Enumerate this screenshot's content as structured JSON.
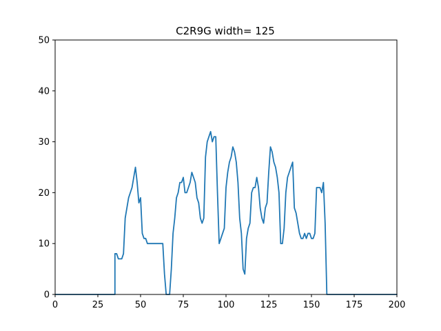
{
  "chart_data": {
    "type": "line",
    "title": "C2R9G width= 125",
    "xlabel": "",
    "ylabel": "",
    "xlim": [
      0,
      200
    ],
    "ylim": [
      0,
      50
    ],
    "x_ticks": [
      0,
      25,
      50,
      75,
      100,
      125,
      150,
      175,
      200
    ],
    "y_ticks": [
      0,
      10,
      20,
      30,
      40,
      50
    ],
    "grid": false,
    "series": [
      {
        "color": "#1f77b4",
        "points": [
          [
            0,
            0
          ],
          [
            35,
            0
          ],
          [
            35,
            8
          ],
          [
            36,
            8
          ],
          [
            37,
            7
          ],
          [
            38,
            7
          ],
          [
            39,
            7
          ],
          [
            40,
            8
          ],
          [
            41,
            15
          ],
          [
            42,
            17
          ],
          [
            43,
            19
          ],
          [
            44,
            20
          ],
          [
            45,
            21
          ],
          [
            46,
            23
          ],
          [
            47,
            25
          ],
          [
            48,
            22
          ],
          [
            49,
            18
          ],
          [
            50,
            19
          ],
          [
            51,
            12
          ],
          [
            52,
            11
          ],
          [
            53,
            11
          ],
          [
            54,
            10
          ],
          [
            55,
            10
          ],
          [
            56,
            10
          ],
          [
            57,
            10
          ],
          [
            58,
            10
          ],
          [
            59,
            10
          ],
          [
            60,
            10
          ],
          [
            61,
            10
          ],
          [
            62,
            10
          ],
          [
            63,
            10
          ],
          [
            64,
            4
          ],
          [
            65,
            0
          ],
          [
            66,
            0
          ],
          [
            67,
            0
          ],
          [
            68,
            5
          ],
          [
            69,
            12
          ],
          [
            70,
            15
          ],
          [
            71,
            19
          ],
          [
            72,
            20
          ],
          [
            73,
            22
          ],
          [
            74,
            22
          ],
          [
            75,
            23
          ],
          [
            76,
            20
          ],
          [
            77,
            20
          ],
          [
            78,
            21
          ],
          [
            79,
            22
          ],
          [
            80,
            24
          ],
          [
            81,
            23
          ],
          [
            82,
            22
          ],
          [
            83,
            19
          ],
          [
            84,
            18
          ],
          [
            85,
            15
          ],
          [
            86,
            14
          ],
          [
            87,
            15
          ],
          [
            88,
            27
          ],
          [
            89,
            30
          ],
          [
            90,
            31
          ],
          [
            91,
            32
          ],
          [
            92,
            30
          ],
          [
            93,
            31
          ],
          [
            94,
            31
          ],
          [
            95,
            20
          ],
          [
            96,
            10
          ],
          [
            97,
            11
          ],
          [
            98,
            12
          ],
          [
            99,
            13
          ],
          [
            100,
            21
          ],
          [
            101,
            24
          ],
          [
            102,
            26
          ],
          [
            103,
            27
          ],
          [
            104,
            29
          ],
          [
            105,
            28
          ],
          [
            106,
            26
          ],
          [
            107,
            22
          ],
          [
            108,
            15
          ],
          [
            109,
            12
          ],
          [
            110,
            5
          ],
          [
            111,
            4
          ],
          [
            112,
            11
          ],
          [
            113,
            13
          ],
          [
            114,
            14
          ],
          [
            115,
            20
          ],
          [
            116,
            21
          ],
          [
            117,
            21
          ],
          [
            118,
            23
          ],
          [
            119,
            21
          ],
          [
            120,
            17
          ],
          [
            121,
            15
          ],
          [
            122,
            14
          ],
          [
            123,
            17
          ],
          [
            124,
            18
          ],
          [
            125,
            24
          ],
          [
            126,
            29
          ],
          [
            127,
            28
          ],
          [
            128,
            26
          ],
          [
            129,
            25
          ],
          [
            130,
            23
          ],
          [
            131,
            20
          ],
          [
            132,
            10
          ],
          [
            133,
            10
          ],
          [
            134,
            13
          ],
          [
            135,
            20
          ],
          [
            136,
            23
          ],
          [
            137,
            24
          ],
          [
            138,
            25
          ],
          [
            139,
            26
          ],
          [
            140,
            17
          ],
          [
            141,
            16
          ],
          [
            142,
            14
          ],
          [
            143,
            12
          ],
          [
            144,
            11
          ],
          [
            145,
            11
          ],
          [
            146,
            12
          ],
          [
            147,
            11
          ],
          [
            148,
            12
          ],
          [
            149,
            12
          ],
          [
            150,
            11
          ],
          [
            151,
            11
          ],
          [
            152,
            12
          ],
          [
            153,
            21
          ],
          [
            154,
            21
          ],
          [
            155,
            21
          ],
          [
            156,
            20
          ],
          [
            157,
            22
          ],
          [
            158,
            14
          ],
          [
            159,
            0
          ],
          [
            160,
            0
          ],
          [
            200,
            0
          ]
        ]
      }
    ]
  }
}
